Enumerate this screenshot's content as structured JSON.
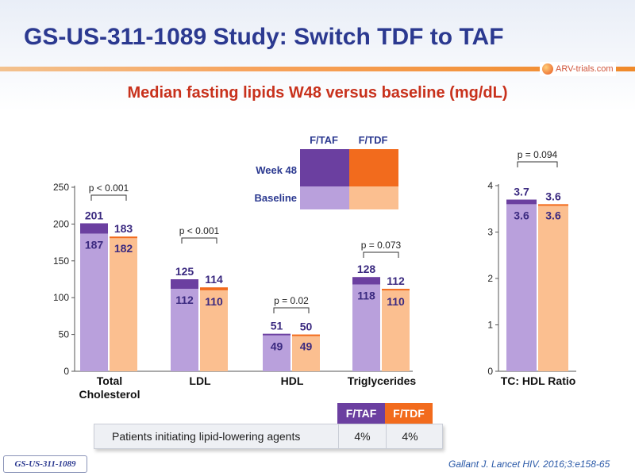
{
  "header": {
    "title": "GS-US-311-1089 Study: Switch TDF to TAF",
    "brand": "ARV-trials.com",
    "subtitle": "Median fasting lipids W48 versus baseline (mg/dL)"
  },
  "colors": {
    "taf_week48": "#6b3fa0",
    "tdf_week48": "#f26b1d",
    "taf_baseline": "#b9a0dc",
    "tdf_baseline": "#fbbf90",
    "title": "#2b3990",
    "subtitle": "#c8311c",
    "value_label": "#3b2a80"
  },
  "legend": {
    "columns": [
      "F/TAF",
      "F/TDF"
    ],
    "rows": [
      "Week 48",
      "Baseline"
    ]
  },
  "chart_data": [
    {
      "type": "bar",
      "categories": [
        "Total\nCholesterol",
        "LDL",
        "HDL",
        "Triglycerides"
      ],
      "series": [
        {
          "name": "F/TAF",
          "week48": [
            201,
            125,
            51,
            128
          ],
          "baseline": [
            187,
            112,
            49,
            118
          ]
        },
        {
          "name": "F/TDF",
          "week48": [
            183,
            114,
            50,
            112
          ],
          "baseline": [
            182,
            110,
            49,
            110
          ]
        }
      ],
      "pvalues": [
        "p < 0.001",
        "p < 0.001",
        "p = 0.02",
        "p = 0.073"
      ],
      "yticks": [
        0,
        50,
        100,
        150,
        200,
        250
      ],
      "ylim": [
        0,
        250
      ]
    },
    {
      "type": "bar",
      "categories": [
        "TC: HDL Ratio"
      ],
      "series": [
        {
          "name": "F/TAF",
          "week48": [
            3.7
          ],
          "baseline": [
            3.6
          ]
        },
        {
          "name": "F/TDF",
          "week48": [
            3.6
          ],
          "baseline": [
            3.6
          ]
        }
      ],
      "pvalues": [
        "p = 0.094"
      ],
      "yticks": [
        0,
        1,
        2,
        3,
        4
      ],
      "ylim": [
        0,
        4
      ]
    }
  ],
  "table": {
    "headers": [
      "F/TAF",
      "F/TDF"
    ],
    "row_label": "Patients initiating lipid-lowering agents",
    "values": [
      "4%",
      "4%"
    ]
  },
  "footer": {
    "study_tag": "GS-US-311-1089",
    "citation": "Gallant J. Lancet HIV. 2016;3:e158-65"
  }
}
